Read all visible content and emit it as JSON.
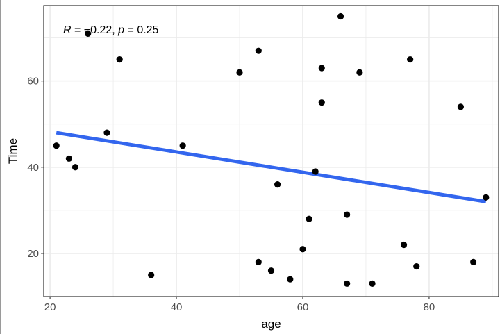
{
  "chart_data": {
    "type": "scatter",
    "xlabel": "age",
    "ylabel": "Time",
    "xlim": [
      19,
      91
    ],
    "ylim": [
      10,
      77.5
    ],
    "x_ticks": [
      20,
      40,
      60,
      80
    ],
    "y_ticks": [
      20,
      40,
      60
    ],
    "x_ticks_minor": [
      30,
      50,
      70,
      90
    ],
    "y_ticks_minor": [
      30,
      50,
      70
    ],
    "grid": true,
    "annotation": {
      "r_label": "R",
      "r_value": " = −0.22, ",
      "p_label": "p",
      "p_value": " = 0.25"
    },
    "points": [
      {
        "x": 21,
        "y": 45
      },
      {
        "x": 23,
        "y": 42
      },
      {
        "x": 24,
        "y": 40
      },
      {
        "x": 26,
        "y": 71
      },
      {
        "x": 29,
        "y": 48
      },
      {
        "x": 31,
        "y": 65
      },
      {
        "x": 36,
        "y": 15
      },
      {
        "x": 41,
        "y": 45
      },
      {
        "x": 50,
        "y": 62
      },
      {
        "x": 53,
        "y": 67
      },
      {
        "x": 53,
        "y": 18
      },
      {
        "x": 55,
        "y": 16
      },
      {
        "x": 56,
        "y": 36
      },
      {
        "x": 58,
        "y": 14
      },
      {
        "x": 60,
        "y": 21
      },
      {
        "x": 61,
        "y": 28
      },
      {
        "x": 62,
        "y": 39
      },
      {
        "x": 63,
        "y": 63
      },
      {
        "x": 63,
        "y": 55
      },
      {
        "x": 66,
        "y": 75
      },
      {
        "x": 67,
        "y": 29
      },
      {
        "x": 67,
        "y": 13
      },
      {
        "x": 69,
        "y": 62
      },
      {
        "x": 71,
        "y": 13
      },
      {
        "x": 76,
        "y": 22
      },
      {
        "x": 77,
        "y": 65
      },
      {
        "x": 78,
        "y": 17
      },
      {
        "x": 85,
        "y": 54
      },
      {
        "x": 87,
        "y": 18
      },
      {
        "x": 89,
        "y": 33
      }
    ],
    "regression_line": {
      "x": [
        21,
        89
      ],
      "y": [
        48,
        32
      ],
      "color": "#3366ee"
    },
    "point_color": "#000000",
    "grid_color": "#ebebeb"
  }
}
